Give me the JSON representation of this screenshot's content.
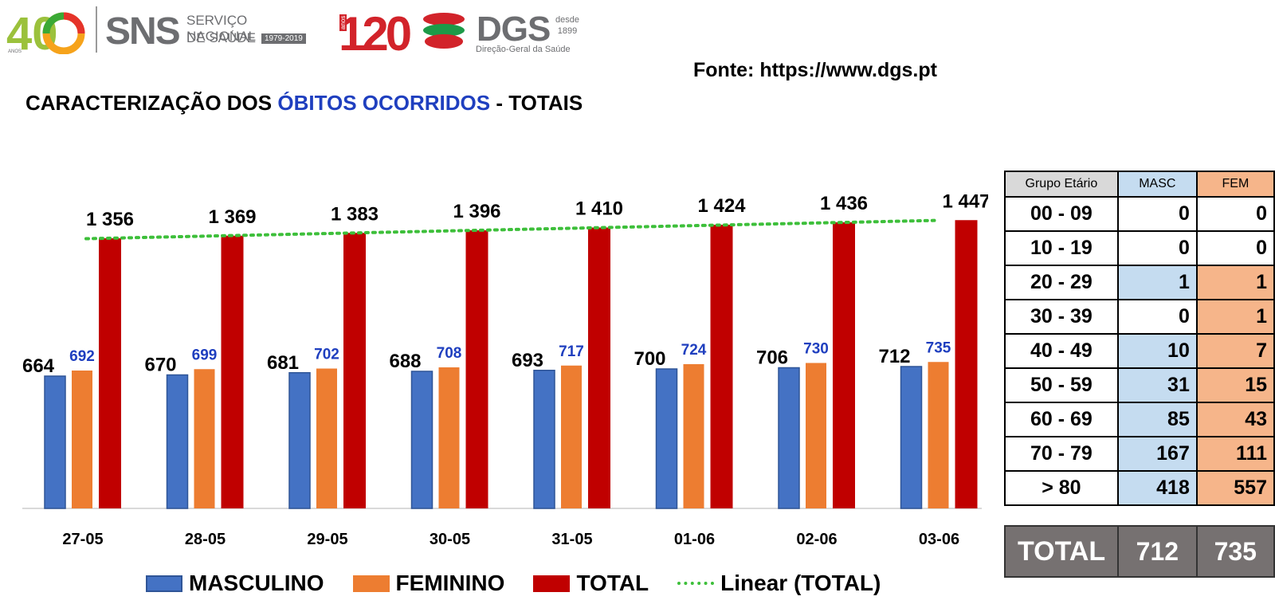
{
  "header": {
    "logo40": {
      "number": "40",
      "label": "ANOS"
    },
    "sns": {
      "abbr": "SNS",
      "line1": "SERVIÇO NACIONAL",
      "line2": "DE SAÚDE",
      "years": "1979-2019"
    },
    "dgs": {
      "number": "120",
      "number_small": "anos",
      "abbr": "DGS",
      "since_label": "desde",
      "since_year": "1899",
      "subtitle": "Direção-Geral da Saúde"
    }
  },
  "source": "Fonte: https://www.dgs.pt",
  "title": {
    "part1": "CARACTERIZAÇÃO DOS ",
    "highlight": "ÓBITOS OCORRIDOS",
    "part2": " - TOTAIS"
  },
  "colors": {
    "masculino": "#4472c4",
    "feminino": "#ed7d31",
    "total": "#c00000",
    "trend": "#3dbf3a",
    "title_highlight": "#1f3fbf",
    "fem_label": "#1f3fbf",
    "table_masc_fill": "#c5dcf0",
    "table_fem_fill": "#f6b58a",
    "table_header_grp": "#d9d9d9",
    "total_row": "#767171"
  },
  "chart_data": {
    "type": "bar",
    "categories": [
      "27-05",
      "28-05",
      "29-05",
      "30-05",
      "31-05",
      "01-06",
      "02-06",
      "03-06"
    ],
    "series": [
      {
        "name": "MASCULINO",
        "values": [
          664,
          670,
          681,
          688,
          693,
          700,
          706,
          712
        ],
        "labels": [
          "664",
          "670",
          "681",
          "688",
          "693",
          "700",
          "706",
          "712"
        ]
      },
      {
        "name": "FEMININO",
        "values": [
          692,
          699,
          702,
          708,
          717,
          724,
          730,
          735
        ],
        "labels": [
          "692",
          "699",
          "702",
          "708",
          "717",
          "724",
          "730",
          "735"
        ]
      },
      {
        "name": "TOTAL",
        "values": [
          1356,
          1369,
          1383,
          1396,
          1410,
          1424,
          1436,
          1447
        ],
        "labels": [
          "1 356",
          "1 369",
          "1 383",
          "1 396",
          "1 410",
          "1 424",
          "1 436",
          "1 447"
        ]
      }
    ],
    "trendline": {
      "name": "Linear (TOTAL)",
      "of_series": "TOTAL",
      "style": "dotted"
    },
    "ylim": [
      0,
      1600
    ],
    "legend": "bottom"
  },
  "table": {
    "headers": [
      "Grupo Etário",
      "MASC",
      "FEM"
    ],
    "rows": [
      {
        "group": "00 - 09",
        "masc": "0",
        "fem": "0",
        "masc_shaded": false,
        "fem_shaded": false
      },
      {
        "group": "10 - 19",
        "masc": "0",
        "fem": "0",
        "masc_shaded": false,
        "fem_shaded": false
      },
      {
        "group": "20 - 29",
        "masc": "1",
        "fem": "1",
        "masc_shaded": true,
        "fem_shaded": true
      },
      {
        "group": "30 - 39",
        "masc": "0",
        "fem": "1",
        "masc_shaded": false,
        "fem_shaded": true
      },
      {
        "group": "40 - 49",
        "masc": "10",
        "fem": "7",
        "masc_shaded": true,
        "fem_shaded": true
      },
      {
        "group": "50 - 59",
        "masc": "31",
        "fem": "15",
        "masc_shaded": true,
        "fem_shaded": true
      },
      {
        "group": "60 - 69",
        "masc": "85",
        "fem": "43",
        "masc_shaded": true,
        "fem_shaded": true
      },
      {
        "group": "70 - 79",
        "masc": "167",
        "fem": "111",
        "masc_shaded": true,
        "fem_shaded": true
      },
      {
        "group": "> 80",
        "masc": "418",
        "fem": "557",
        "masc_shaded": true,
        "fem_shaded": true
      }
    ],
    "total": {
      "label": "TOTAL",
      "masc": "712",
      "fem": "735"
    }
  }
}
